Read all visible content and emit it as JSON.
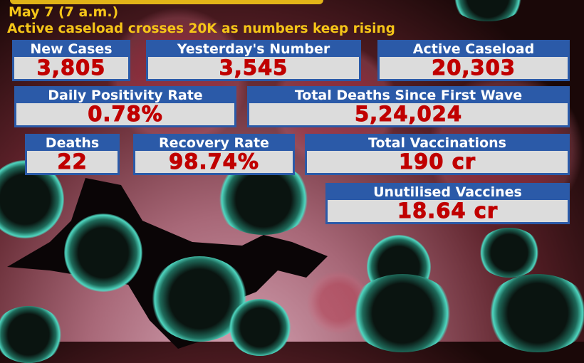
{
  "date": "May 7 (7 a.m.)",
  "headline": "Active caseload crosses 20K as numbers keep rising",
  "stats": [
    {
      "label": "New Cases",
      "value": "3,805"
    },
    {
      "label": "Yesterday's Number",
      "value": "3,545"
    },
    {
      "label": "Active Caseload",
      "value": "20,303"
    },
    {
      "label": "Daily Positivity Rate",
      "value": "0.78%"
    },
    {
      "label": "Total Deaths Since First Wave",
      "value": "5,24,024"
    },
    {
      "label": "Deaths",
      "value": "22"
    },
    {
      "label": "Recovery Rate",
      "value": "98.74%"
    },
    {
      "label": "Total Vaccinations",
      "value": "190 cr"
    },
    {
      "label": "Unutilised Vaccines",
      "value": "18.64 cr"
    }
  ],
  "colors": {
    "headline": "#f5c518",
    "card": "#2b5aa8",
    "value": "#c00000"
  }
}
